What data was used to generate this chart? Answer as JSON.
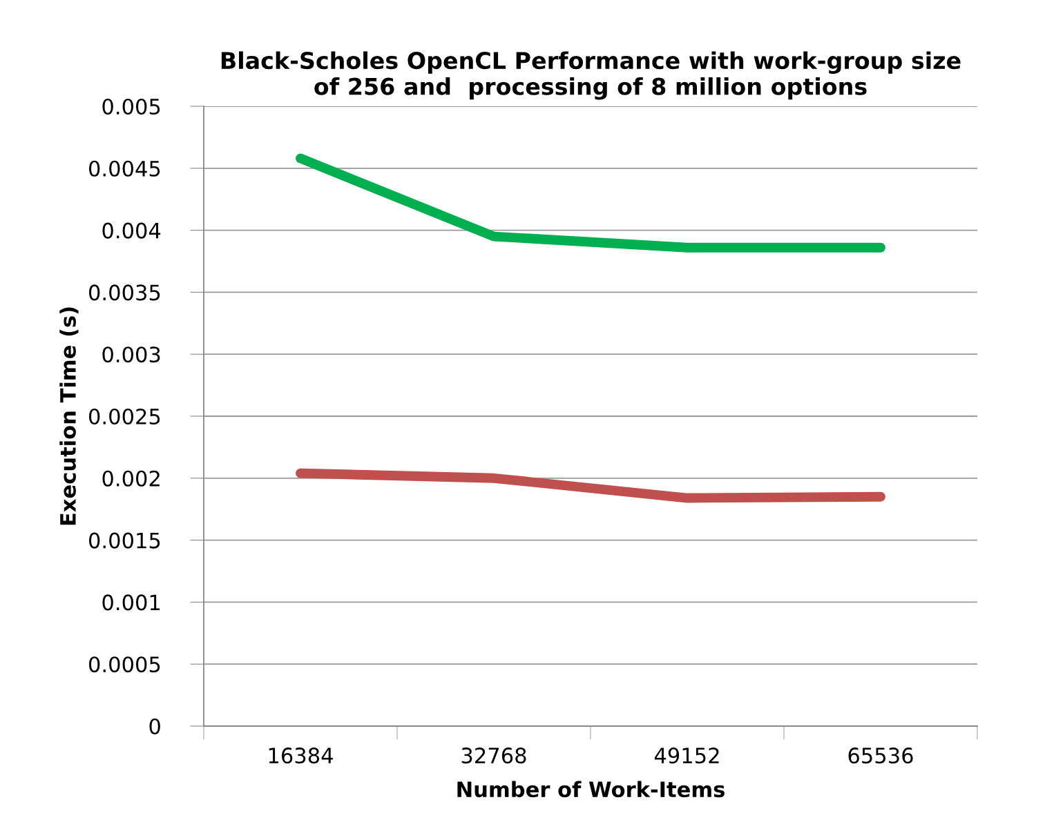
{
  "chart_data": {
    "type": "line",
    "title": "Black-Scholes OpenCL Performance with work-group size\nof 256 and  processing of 8 million options",
    "xlabel": "Number of Work-Items",
    "ylabel": "Execution Time (s)",
    "categories": [
      "16384",
      "32768",
      "49152",
      "65536"
    ],
    "series": [
      {
        "color": "#00b050",
        "values": [
          0.00458,
          0.00395,
          0.00386,
          0.00386
        ]
      },
      {
        "color": "#c0504d",
        "values": [
          0.00204,
          0.002,
          0.00184,
          0.00185
        ]
      }
    ],
    "ylim": [
      0,
      0.005
    ],
    "yticks": [
      0,
      0.0005,
      0.001,
      0.0015,
      0.002,
      0.0025,
      0.003,
      0.0035,
      0.004,
      0.0045,
      0.005
    ],
    "grid": "y",
    "line_style": "solid"
  }
}
